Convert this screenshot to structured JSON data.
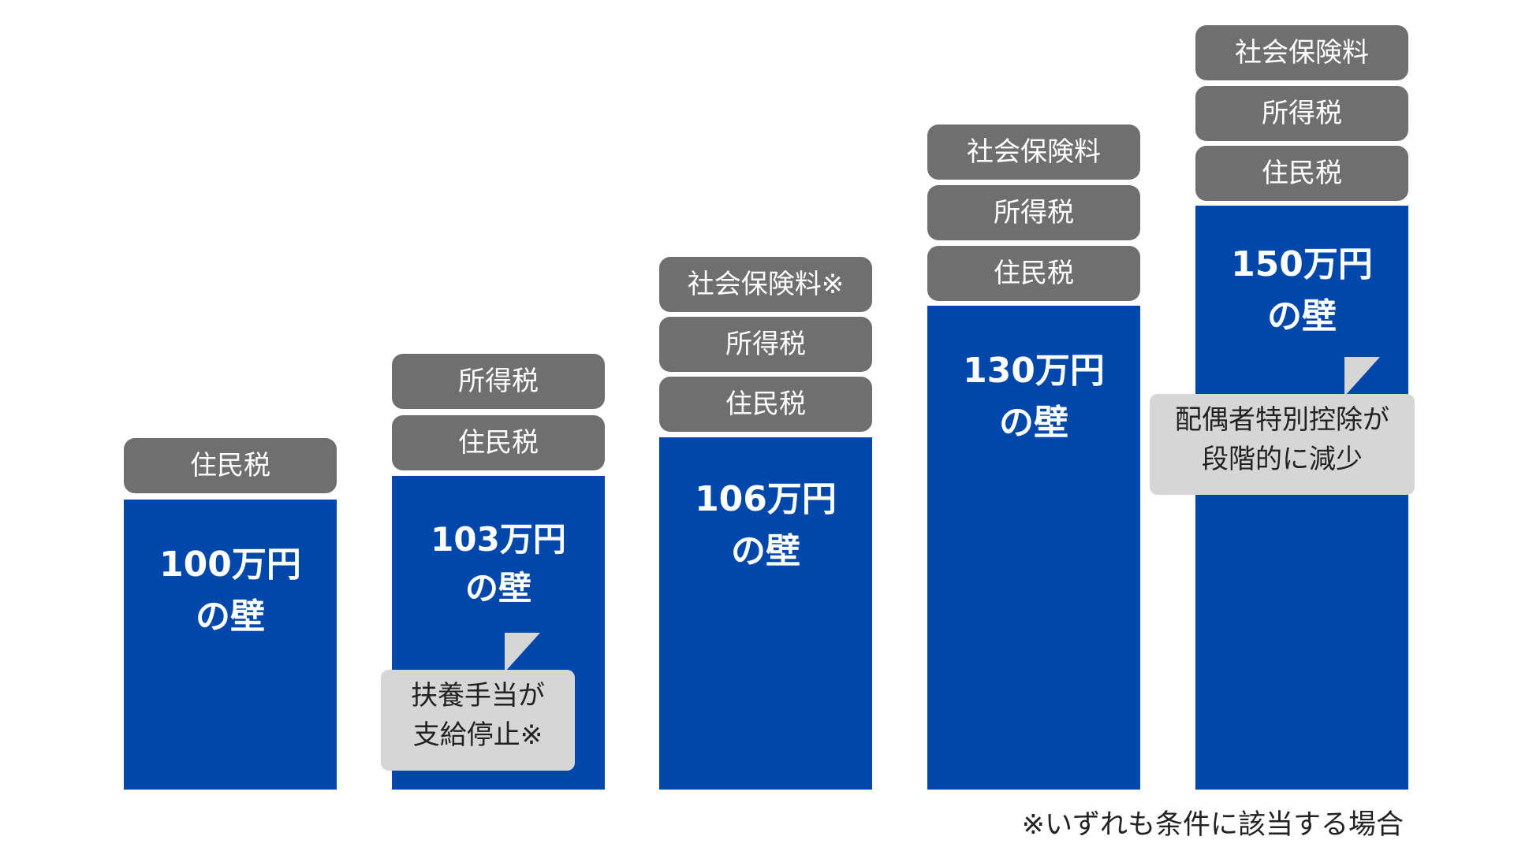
{
  "columns": [
    {
      "wall_line1": "100万円",
      "wall_line2": "の壁",
      "tags": [
        "住民税"
      ]
    },
    {
      "wall_line1": "103万円",
      "wall_line2": "の壁",
      "tags": [
        "所得税",
        "住民税"
      ],
      "note": [
        "扶養手当が",
        "支給停止※"
      ]
    },
    {
      "wall_line1": "106万円",
      "wall_line2": "の壁",
      "tags": [
        "社会保険料※",
        "所得税",
        "住民税"
      ]
    },
    {
      "wall_line1": "130万円",
      "wall_line2": "の壁",
      "tags": [
        "社会保険料",
        "所得税",
        "住民税"
      ]
    },
    {
      "wall_line1": "150万円",
      "wall_line2": "の壁",
      "tags": [
        "社会保険料",
        "所得税",
        "住民税"
      ],
      "note": [
        "配偶者特別控除が",
        "段階的に減少"
      ]
    }
  ],
  "footnote": "※いずれも条件に該当する場合",
  "colors": {
    "bar": "#0047ab",
    "tag": "#6f6f6f",
    "note": "#d6d6d6"
  }
}
